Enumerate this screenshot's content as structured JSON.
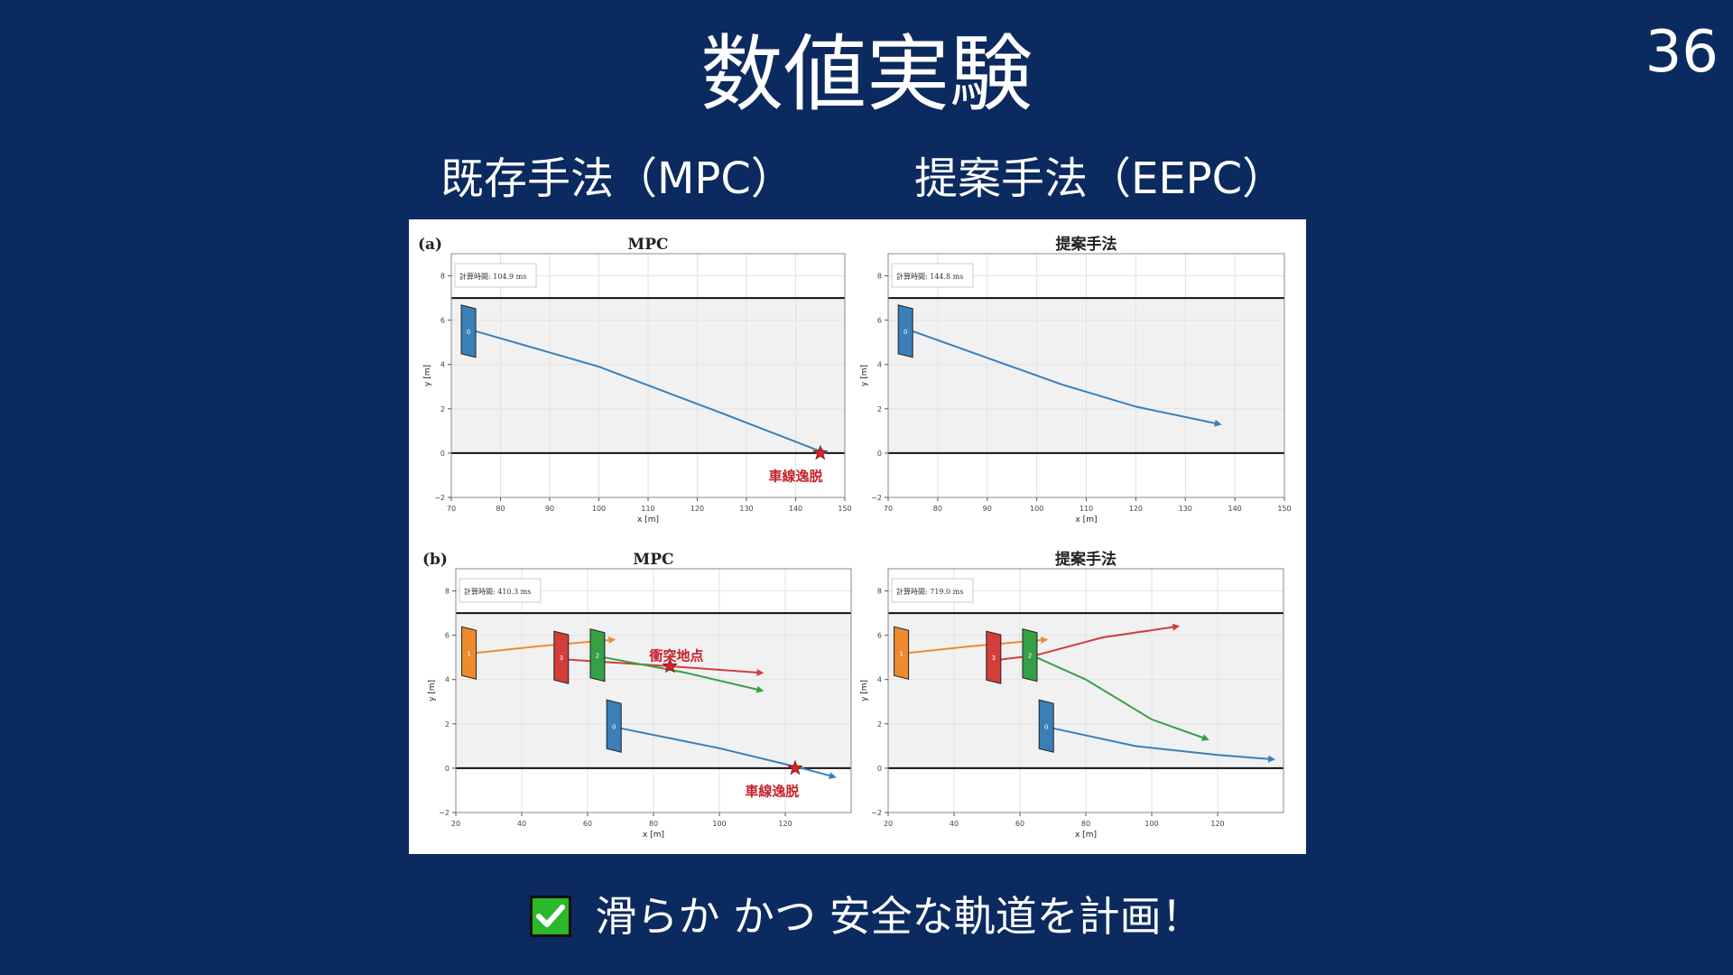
{
  "slide": {
    "title": "数値実験",
    "page_number": "36",
    "subtitle_left": "既存手法（MPC）",
    "subtitle_right": "提案手法（EEPC）",
    "bottom_text": "滑らか かつ 安全な軌道を計画！",
    "bottom_icon": "check-mark-icon",
    "colors": {
      "background": "#0b2a5f",
      "text": "#ffffff",
      "check": "#2bb82b"
    }
  },
  "chart_data": [
    {
      "type": "line",
      "row_label": "(a)",
      "title": "MPC",
      "timing": "計算時間: 104.9 ms",
      "xlabel": "x [m]",
      "ylabel": "y [m]",
      "xlim": [
        70,
        150
      ],
      "ylim": [
        -2,
        9
      ],
      "xticks": [
        70,
        80,
        90,
        100,
        110,
        120,
        130,
        140,
        150
      ],
      "yticks": [
        -2,
        0,
        2,
        4,
        6,
        8
      ],
      "lane_bounds": [
        0,
        7
      ],
      "vehicles": [
        {
          "id": "0",
          "x": 73.5,
          "y": 5.5,
          "color": "#3a7fb8"
        }
      ],
      "series": [
        {
          "color": "#3a7fb8",
          "x": [
            75,
            100,
            125,
            146
          ],
          "y": [
            5.5,
            3.9,
            1.8,
            0.0
          ]
        }
      ],
      "events": [
        {
          "label": "車線逸脱",
          "x": 145,
          "y": 0,
          "label_x": 140,
          "label_y": -1.0
        }
      ]
    },
    {
      "type": "line",
      "row_label": "",
      "title": "提案手法",
      "timing": "計算時間: 144.8 ms",
      "xlabel": "x [m]",
      "ylabel": "y [m]",
      "xlim": [
        70,
        150
      ],
      "ylim": [
        -2,
        9
      ],
      "xticks": [
        70,
        80,
        90,
        100,
        110,
        120,
        130,
        140,
        150
      ],
      "yticks": [
        -2,
        0,
        2,
        4,
        6,
        8
      ],
      "lane_bounds": [
        0,
        7
      ],
      "vehicles": [
        {
          "id": "0",
          "x": 73.5,
          "y": 5.5,
          "color": "#3a7fb8"
        }
      ],
      "series": [
        {
          "color": "#3a7fb8",
          "x": [
            75,
            90,
            105,
            120,
            137
          ],
          "y": [
            5.5,
            4.3,
            3.1,
            2.1,
            1.3
          ]
        }
      ],
      "events": []
    },
    {
      "type": "line",
      "row_label": "(b)",
      "title": "MPC",
      "timing": "計算時間: 410.3 ms",
      "xlabel": "x [m]",
      "ylabel": "y [m]",
      "xlim": [
        20,
        140
      ],
      "ylim": [
        -2,
        9
      ],
      "xticks": [
        20,
        40,
        60,
        80,
        100,
        120
      ],
      "yticks": [
        -2,
        0,
        2,
        4,
        6,
        8
      ],
      "lane_bounds": [
        0,
        7
      ],
      "vehicles": [
        {
          "id": "1",
          "x": 24,
          "y": 5.2,
          "color": "#ee8a2e"
        },
        {
          "id": "3",
          "x": 52,
          "y": 5.0,
          "color": "#d33d3a"
        },
        {
          "id": "2",
          "x": 63,
          "y": 5.1,
          "color": "#35a045"
        },
        {
          "id": "0",
          "x": 68,
          "y": 1.9,
          "color": "#3a7fb8"
        }
      ],
      "series": [
        {
          "color": "#ee8a2e",
          "x": [
            26,
            45,
            68
          ],
          "y": [
            5.2,
            5.5,
            5.8
          ]
        },
        {
          "color": "#d33d3a",
          "x": [
            54,
            85,
            113
          ],
          "y": [
            4.9,
            4.6,
            4.3
          ]
        },
        {
          "color": "#35a045",
          "x": [
            65,
            90,
            113
          ],
          "y": [
            5.0,
            4.3,
            3.5
          ]
        },
        {
          "color": "#3a7fb8",
          "x": [
            70,
            100,
            125,
            135
          ],
          "y": [
            1.8,
            0.9,
            0.0,
            -0.4
          ]
        }
      ],
      "events": [
        {
          "label": "衝突地点",
          "x": 85,
          "y": 4.6,
          "label_x": 87,
          "label_y": 5.1
        },
        {
          "label": "車線逸脱",
          "x": 123,
          "y": 0,
          "label_x": 116,
          "label_y": -1.0
        }
      ]
    },
    {
      "type": "line",
      "row_label": "",
      "title": "提案手法",
      "timing": "計算時間: 719.0 ms",
      "xlabel": "x [m]",
      "ylabel": "y [m]",
      "xlim": [
        20,
        140
      ],
      "ylim": [
        -2,
        9
      ],
      "xticks": [
        20,
        40,
        60,
        80,
        100,
        120
      ],
      "yticks": [
        -2,
        0,
        2,
        4,
        6,
        8
      ],
      "lane_bounds": [
        0,
        7
      ],
      "vehicles": [
        {
          "id": "1",
          "x": 24,
          "y": 5.2,
          "color": "#ee8a2e"
        },
        {
          "id": "3",
          "x": 52,
          "y": 5.0,
          "color": "#d33d3a"
        },
        {
          "id": "2",
          "x": 63,
          "y": 5.1,
          "color": "#35a045"
        },
        {
          "id": "0",
          "x": 68,
          "y": 1.9,
          "color": "#3a7fb8"
        }
      ],
      "series": [
        {
          "color": "#ee8a2e",
          "x": [
            26,
            45,
            68
          ],
          "y": [
            5.2,
            5.5,
            5.8
          ]
        },
        {
          "color": "#d33d3a",
          "x": [
            54,
            65,
            85,
            108
          ],
          "y": [
            4.9,
            5.1,
            5.9,
            6.4
          ]
        },
        {
          "color": "#35a045",
          "x": [
            65,
            80,
            100,
            117
          ],
          "y": [
            5.0,
            4.0,
            2.2,
            1.3
          ]
        },
        {
          "color": "#3a7fb8",
          "x": [
            70,
            95,
            120,
            137
          ],
          "y": [
            1.8,
            1.0,
            0.6,
            0.4
          ]
        }
      ],
      "events": []
    }
  ]
}
